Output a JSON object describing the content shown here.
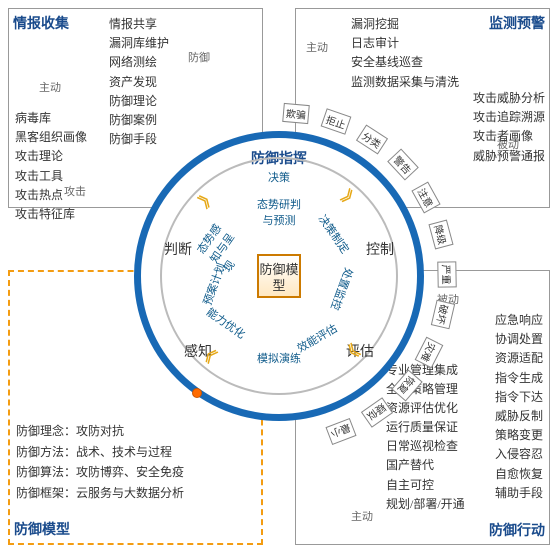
{
  "colors": {
    "primary": "#1a4b8c",
    "ring": "#1869b5",
    "dashed": "#f39c12",
    "text": "#333",
    "muted": "#666",
    "chevron": "#e6a817"
  },
  "quadrants": {
    "tl": {
      "title": "情报收集",
      "list_right": [
        "情报共享",
        "漏洞库维护",
        "网络测绘",
        "资产发现",
        "防御理论",
        "防御案例",
        "防御手段"
      ],
      "list_left": [
        "病毒库",
        "黑客组织画像",
        "攻击理论",
        "攻击工具",
        "攻击热点",
        "攻击特征库"
      ],
      "mode_left": "主动",
      "label_right": "防御",
      "label_bottom": "攻击"
    },
    "tr": {
      "title": "监测预警",
      "list_left": [
        "漏洞挖掘",
        "日志审计",
        "安全基线巡查",
        "监测数据采集与清洗"
      ],
      "list_right": [
        "攻击威胁分析",
        "攻击追踪溯源",
        "攻击者画像",
        "威胁预警通报"
      ],
      "mode_left": "主动",
      "mode_right": "被动"
    },
    "bl": {
      "title": "防御模型",
      "kv": [
        [
          "防御理念",
          "攻防对抗"
        ],
        [
          "防御方法",
          "战术、技术与过程"
        ],
        [
          "防御算法",
          "攻防博弈、安全免疫"
        ],
        [
          "防御框架",
          "云服务与大数据分析"
        ]
      ]
    },
    "br": {
      "title": "防御行动",
      "list_left": [
        "专业管理集成",
        "全局策略管理",
        "资源评估优化",
        "运行质量保证",
        "日常巡视检查",
        "国产替代",
        "自主可控",
        "规划/部署/开通"
      ],
      "list_right": [
        "应急响应",
        "协调处置",
        "资源适配",
        "指令生成",
        "指令下达",
        "威胁反制",
        "策略变更",
        "入侵容忍",
        "自愈恢复",
        "辅助手段"
      ],
      "mode_left": "主动",
      "mode_right": "被动"
    }
  },
  "tags": [
    "欺骗",
    "拒止",
    "分类",
    "警告",
    "注意",
    "降级",
    "严重",
    "破坏",
    "灾难",
    "恢复",
    "疑似",
    "最小"
  ],
  "center": {
    "title": "防御指挥",
    "core": "防御模型",
    "inner_wedges": [
      "决策",
      "态势研判与预测",
      "决策制定",
      "处置监控",
      "效能评估",
      "模拟演练",
      "能力优化",
      "预案计划",
      "态势感知与呈现"
    ],
    "outer_words": [
      "判断",
      "感知",
      "评估",
      "控制"
    ]
  }
}
